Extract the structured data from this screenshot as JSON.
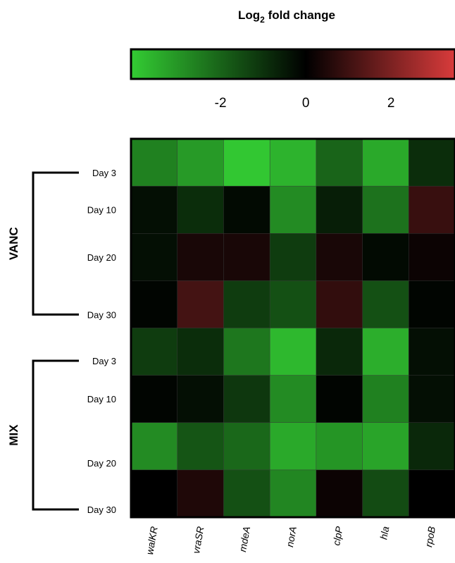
{
  "chart_data": {
    "type": "heatmap",
    "title": "Log",
    "title_sub": "2",
    "title_rest": " fold change",
    "colorbar": {
      "min": -4.1,
      "max": 3.5,
      "ticks": [
        -2,
        0,
        2
      ],
      "tick_labels": [
        "-2",
        "0",
        "2"
      ],
      "colors": {
        "negative": "#33cc33",
        "zero": "#000000",
        "positive": "#d93b3b"
      }
    },
    "columns": [
      "walKR",
      "vraSR",
      "mdeA",
      "norA",
      "clpP",
      "hla",
      "rpoB"
    ],
    "rows": [
      "Day 3",
      "Day 10",
      "Day 20",
      "Day 30",
      "Day 3",
      "Day 10",
      "Day 20",
      "Day 30"
    ],
    "groups": [
      {
        "label": "VANC",
        "rows": [
          0,
          3
        ]
      },
      {
        "label": "MIX",
        "rows": [
          4,
          7
        ]
      }
    ],
    "values": [
      [
        -2.6,
        -3.1,
        -4.0,
        -3.6,
        -2.0,
        -3.4,
        -0.9
      ],
      [
        -0.3,
        -0.9,
        -0.2,
        -2.8,
        -0.6,
        -2.3,
        0.9
      ],
      [
        -0.3,
        0.4,
        0.4,
        -1.2,
        0.4,
        -0.2,
        0.2
      ],
      [
        -0.1,
        1.1,
        -1.2,
        -1.6,
        0.8,
        -1.6,
        -0.1
      ],
      [
        -1.2,
        -0.9,
        -2.4,
        -3.7,
        -0.8,
        -3.5,
        -0.3
      ],
      [
        -0.1,
        -0.3,
        -1.1,
        -2.8,
        -0.1,
        -2.6,
        -0.3
      ],
      [
        -2.8,
        -1.7,
        -2.1,
        -3.4,
        -3.0,
        -3.3,
        -0.8
      ],
      [
        0.0,
        0.5,
        -1.6,
        -2.7,
        0.2,
        -1.5,
        0.0
      ]
    ]
  }
}
